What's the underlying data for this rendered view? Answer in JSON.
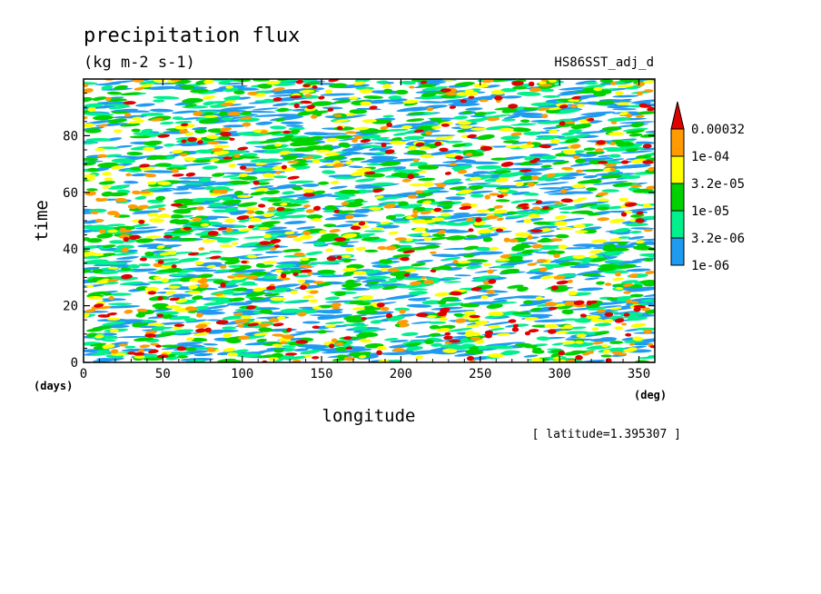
{
  "chart_data": {
    "type": "heatmap",
    "title": "precipitation flux",
    "units": "(kg m-2 s-1)",
    "dataset_label": "HS86SST_adj_d",
    "xlabel": "longitude",
    "xunit": "(deg)",
    "ylabel": "time",
    "yunit": "(days)",
    "xlim": [
      0,
      360
    ],
    "ylim": [
      0,
      100
    ],
    "xticks": [
      0,
      50,
      100,
      150,
      200,
      250,
      300,
      350
    ],
    "yticks": [
      0,
      20,
      40,
      60,
      80
    ],
    "footer": "[ latitude=1.395307 ]",
    "colorbar": {
      "levels": [
        "1e-06",
        "3.2e-06",
        "1e-05",
        "3.2e-05",
        "1e-04",
        "0.00032"
      ],
      "colors": [
        "#1e9bf0",
        "#00f08c",
        "#00d200",
        "#ffff00",
        "#ff9b00",
        "#e10000"
      ]
    }
  }
}
